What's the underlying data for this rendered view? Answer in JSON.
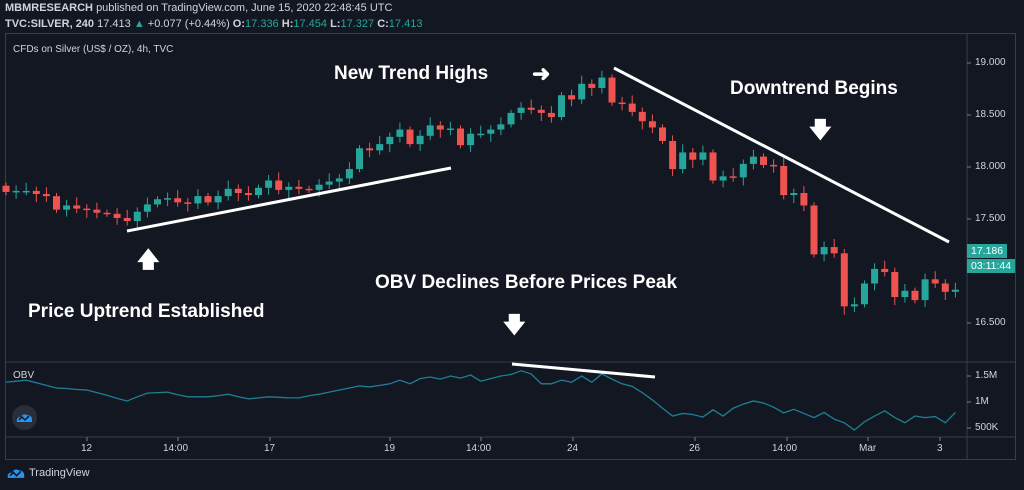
{
  "header": {
    "publisher": "MBMRESEARCH",
    "published_text": "published on TradingView.com, June 15, 2020 22:48:45 UTC",
    "symbol": "TVC:SILVER, 240",
    "last": "17.413",
    "change": "+0.077 (+0.44%)",
    "o_label": "O:",
    "o": "17.336",
    "h_label": "H:",
    "h": "17.454",
    "l_label": "L:",
    "l": "17.327",
    "c_label": "C:",
    "c": "17.413"
  },
  "legend": "CFDs on Silver (US$ / OZ), 4h, TVC",
  "indicator_label": "OBV",
  "price_axis": [
    "19.000",
    "18.500",
    "18.000",
    "17.500",
    "16.500"
  ],
  "obv_axis": [
    "1.5M",
    "1M",
    "500K"
  ],
  "time_axis": [
    "12",
    "14:00",
    "17",
    "19",
    "14:00",
    "24",
    "26",
    "14:00",
    "Mar",
    "3"
  ],
  "current_price_label": "17.186",
  "countdown_label": "03:11:44",
  "annotations": {
    "new_highs": "New Trend Highs",
    "downtrend": "Downtrend Begins",
    "uptrend": "Price Uptrend Established",
    "obv": "OBV Declines Before Prices Peak"
  },
  "footer_brand": "TradingView",
  "colors": {
    "background": "#131722",
    "up": "#26a69a",
    "down": "#ef5350",
    "obv_line": "#1e7f95",
    "annotation": "#ffffff"
  },
  "chart_data": {
    "type": "candlestick",
    "price_range": [
      16.3,
      19.25
    ],
    "closes": [
      17.76,
      17.77,
      17.77,
      17.74,
      17.72,
      17.59,
      17.63,
      17.6,
      17.59,
      17.56,
      17.55,
      17.51,
      17.48,
      17.57,
      17.64,
      17.69,
      17.7,
      17.66,
      17.65,
      17.72,
      17.66,
      17.72,
      17.79,
      17.75,
      17.73,
      17.8,
      17.87,
      17.78,
      17.81,
      17.79,
      17.78,
      17.83,
      17.86,
      17.89,
      17.98,
      18.18,
      18.16,
      18.22,
      18.29,
      18.36,
      18.22,
      18.3,
      18.4,
      18.36,
      18.37,
      18.21,
      18.32,
      18.32,
      18.36,
      18.41,
      18.52,
      18.57,
      18.55,
      18.52,
      18.48,
      18.69,
      18.65,
      18.8,
      18.76,
      18.86,
      18.62,
      18.61,
      18.53,
      18.44,
      18.38,
      18.25,
      17.98,
      18.14,
      18.07,
      18.14,
      17.87,
      17.91,
      17.9,
      18.03,
      18.1,
      18.02,
      18.01,
      17.73,
      17.75,
      17.63,
      17.16,
      17.23,
      17.17,
      16.66,
      16.68,
      16.88,
      17.02,
      16.99,
      16.75,
      16.81,
      16.72,
      16.92,
      16.88,
      16.8,
      16.82
    ],
    "obv_millions": [
      1.38,
      1.4,
      1.42,
      1.37,
      1.32,
      1.27,
      1.26,
      1.24,
      1.23,
      1.18,
      1.13,
      1.07,
      1.02,
      1.1,
      1.17,
      1.18,
      1.19,
      1.14,
      1.1,
      1.1,
      1.1,
      1.12,
      1.15,
      1.1,
      1.06,
      1.08,
      1.1,
      1.09,
      1.08,
      1.08,
      1.12,
      1.15,
      1.19,
      1.23,
      1.27,
      1.31,
      1.29,
      1.32,
      1.35,
      1.42,
      1.35,
      1.45,
      1.48,
      1.44,
      1.5,
      1.46,
      1.52,
      1.4,
      1.45,
      1.5,
      1.53,
      1.6,
      1.54,
      1.35,
      1.35,
      1.42,
      1.38,
      1.5,
      1.38,
      1.54,
      1.44,
      1.35,
      1.3,
      1.18,
      1.04,
      0.88,
      0.73,
      0.78,
      0.76,
      0.71,
      0.85,
      0.73,
      0.88,
      0.96,
      1.02,
      0.98,
      0.9,
      0.79,
      0.86,
      0.78,
      0.7,
      0.8,
      0.67,
      0.6,
      0.46,
      0.62,
      0.73,
      0.83,
      0.7,
      0.6,
      0.73,
      0.7,
      0.72,
      0.6,
      0.8
    ]
  }
}
